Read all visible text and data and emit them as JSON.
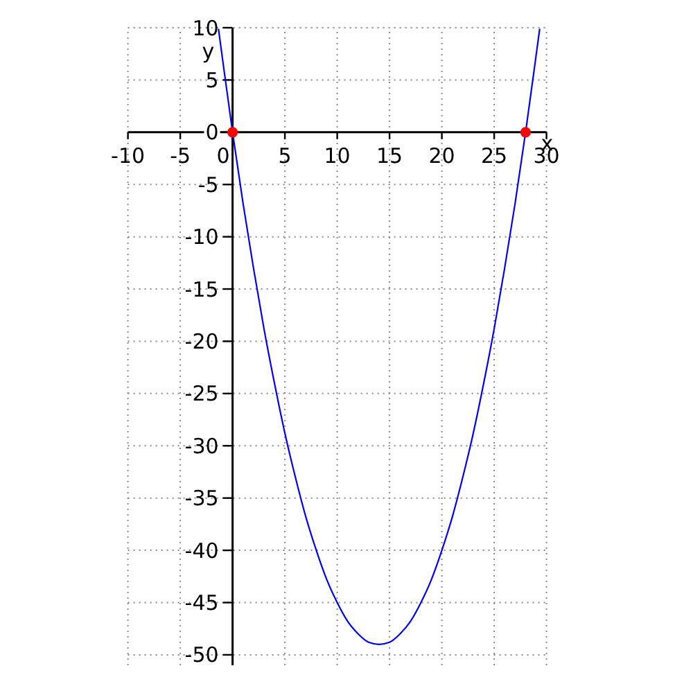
{
  "chart_data": {
    "type": "line",
    "xlabel": "x",
    "ylabel": "y",
    "xlim": [
      -10,
      30
    ],
    "ylim": [
      -51,
      10
    ],
    "xticks": [
      -10,
      -5,
      0,
      5,
      10,
      15,
      20,
      25,
      30
    ],
    "yticks": [
      -50,
      -45,
      -40,
      -35,
      -30,
      -25,
      -20,
      -15,
      -10,
      -5,
      0,
      5,
      10
    ],
    "grid": true,
    "series": [
      {
        "color": "#0000ff",
        "x": [
          -1.35,
          -1,
          0,
          1,
          2,
          3,
          4,
          5,
          6,
          7,
          8,
          9,
          10,
          11,
          12,
          13,
          14,
          15,
          16,
          17,
          18,
          19,
          20,
          21,
          22,
          23,
          24,
          25,
          26,
          27,
          28,
          29,
          29.35
        ],
        "values": [
          9.9,
          7.3,
          0,
          -6.8,
          -13,
          -18.8,
          -24,
          -28.8,
          -33,
          -36.8,
          -40,
          -42.8,
          -45,
          -46.8,
          -48,
          -48.8,
          -49,
          -48.8,
          -48,
          -46.8,
          -45,
          -42.8,
          -40,
          -36.8,
          -33,
          -28.8,
          -24,
          -18.8,
          -13,
          -6.8,
          0,
          7.3,
          9.9
        ]
      },
      {
        "type": "scatter",
        "color": "#ff0000",
        "marker": "circle",
        "x": [
          0,
          28
        ],
        "values": [
          0,
          0
        ]
      }
    ]
  }
}
